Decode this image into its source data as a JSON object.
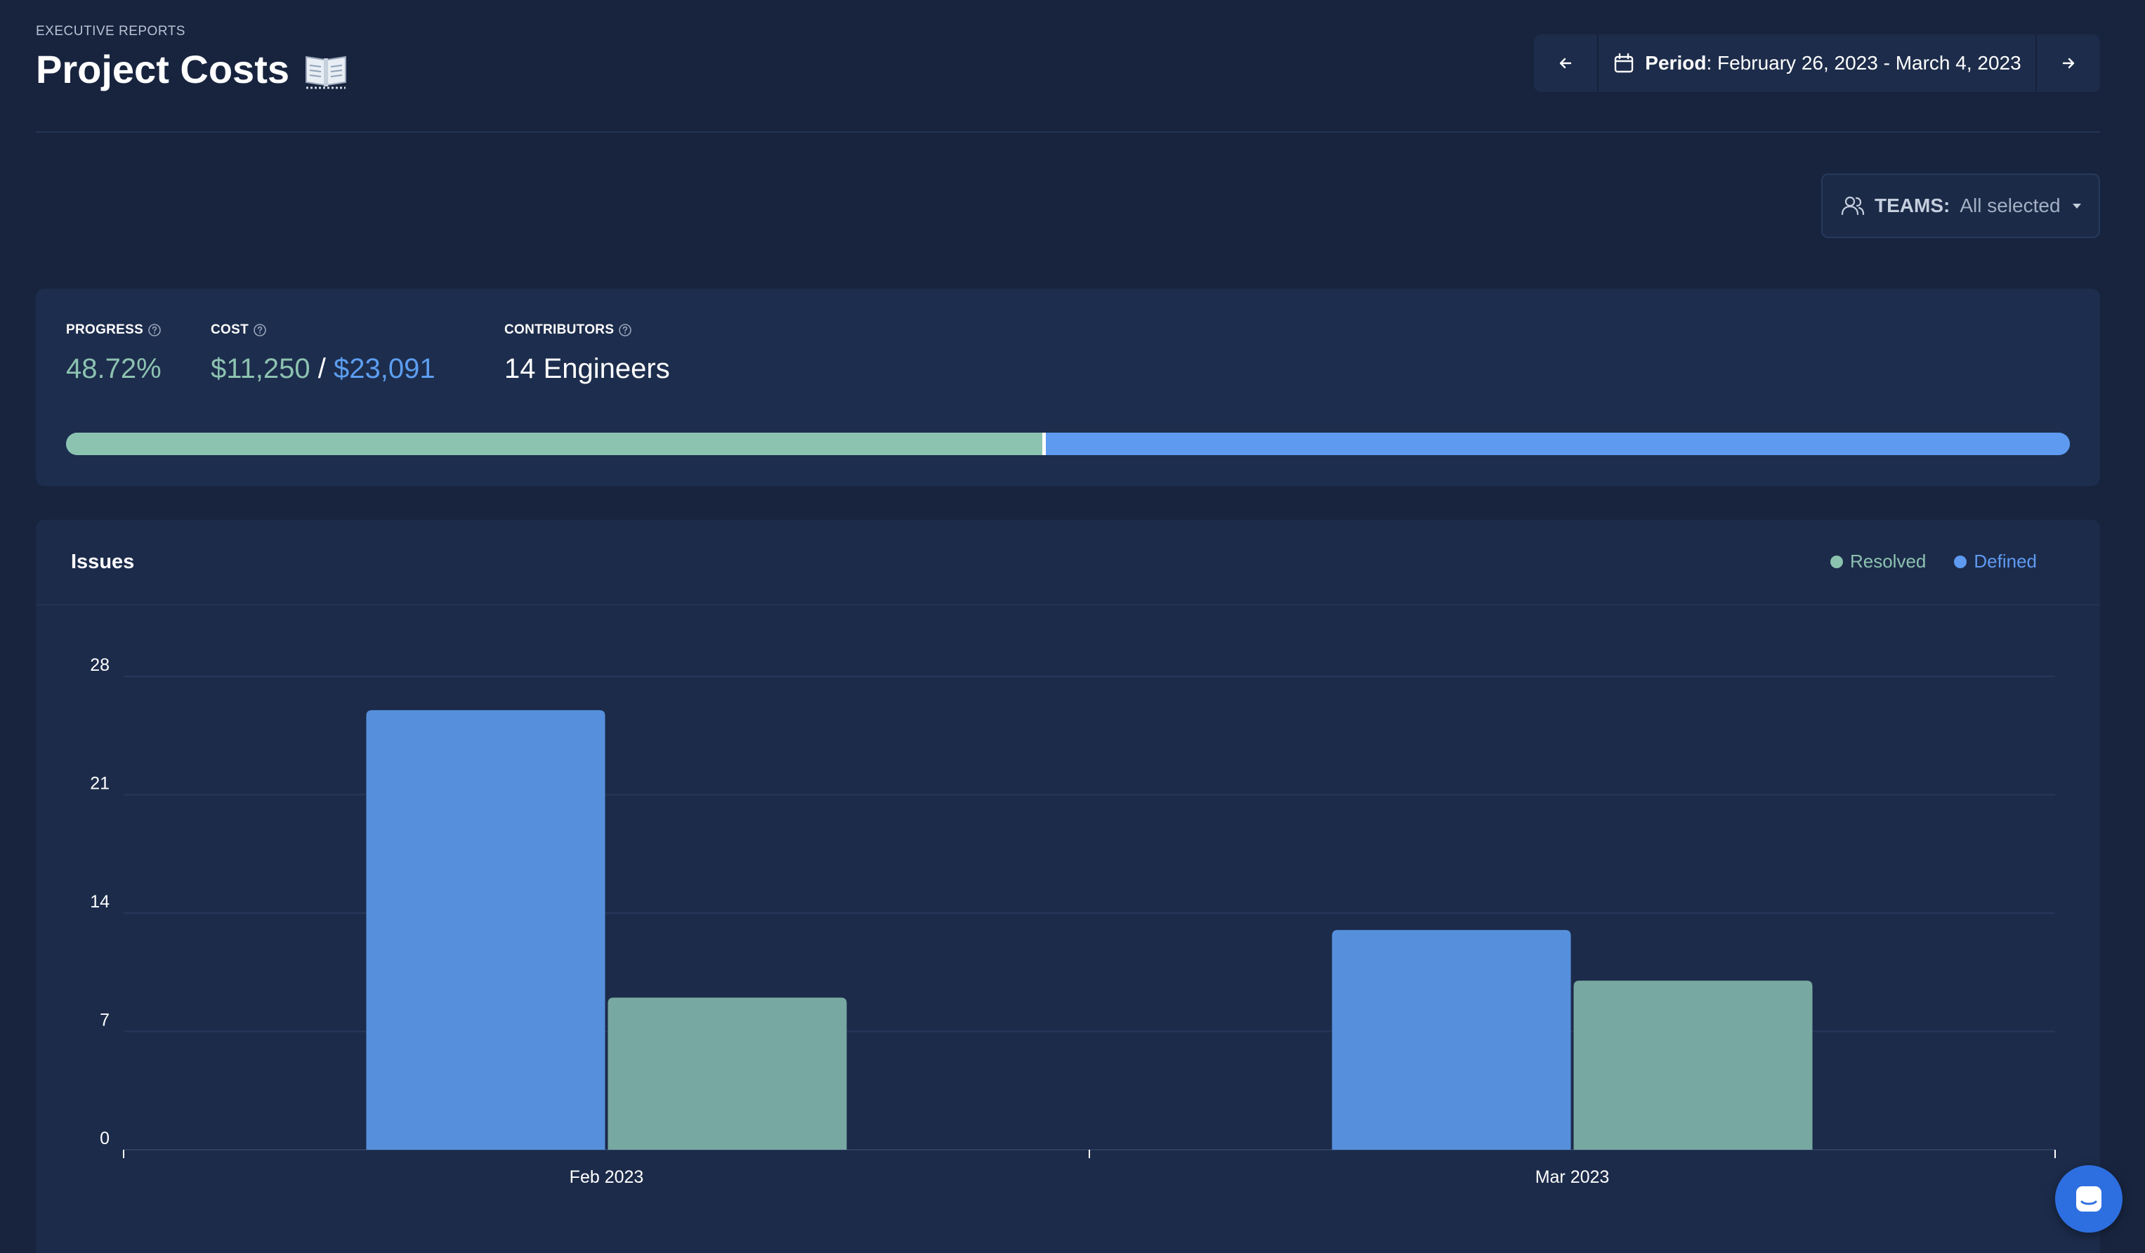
{
  "header": {
    "eyebrow": "EXECUTIVE REPORTS",
    "title": "Project Costs",
    "title_icon": "open-book-icon"
  },
  "period": {
    "label": "Period",
    "value": ": February 26, 2023 - March 4, 2023",
    "prev_icon": "arrow-left-icon",
    "next_icon": "arrow-right-icon",
    "calendar_icon": "calendar-icon"
  },
  "teams": {
    "label": "TEAMS:",
    "value": "All selected",
    "icon": "users-icon"
  },
  "stats": {
    "progress": {
      "label": "PROGRESS",
      "value": "48.72%"
    },
    "cost": {
      "label": "COST",
      "spent": "$11,250",
      "separator": "/",
      "budget": "$23,091"
    },
    "contributors": {
      "label": "CONTRIBUTORS",
      "value": "14 Engineers"
    },
    "progress_fraction": 0.4872,
    "colors": {
      "resolved": "#8cc2b0",
      "defined": "#5e9af0"
    }
  },
  "issues": {
    "title": "Issues",
    "legend": [
      {
        "name": "Resolved",
        "color": "#8cc2b0"
      },
      {
        "name": "Defined",
        "color": "#5e9af0"
      }
    ]
  },
  "chart_data": {
    "type": "bar",
    "title": "Issues",
    "categories": [
      "Feb 2023",
      "Mar 2023"
    ],
    "series": [
      {
        "name": "Defined",
        "values": [
          26,
          13
        ],
        "color": "#5690dc"
      },
      {
        "name": "Resolved",
        "values": [
          9,
          10
        ],
        "color": "#78a8a2"
      }
    ],
    "ylim": [
      0,
      28
    ],
    "yticks": [
      0,
      7,
      14,
      21,
      28
    ],
    "grid": true,
    "legend_position": "top-right"
  }
}
